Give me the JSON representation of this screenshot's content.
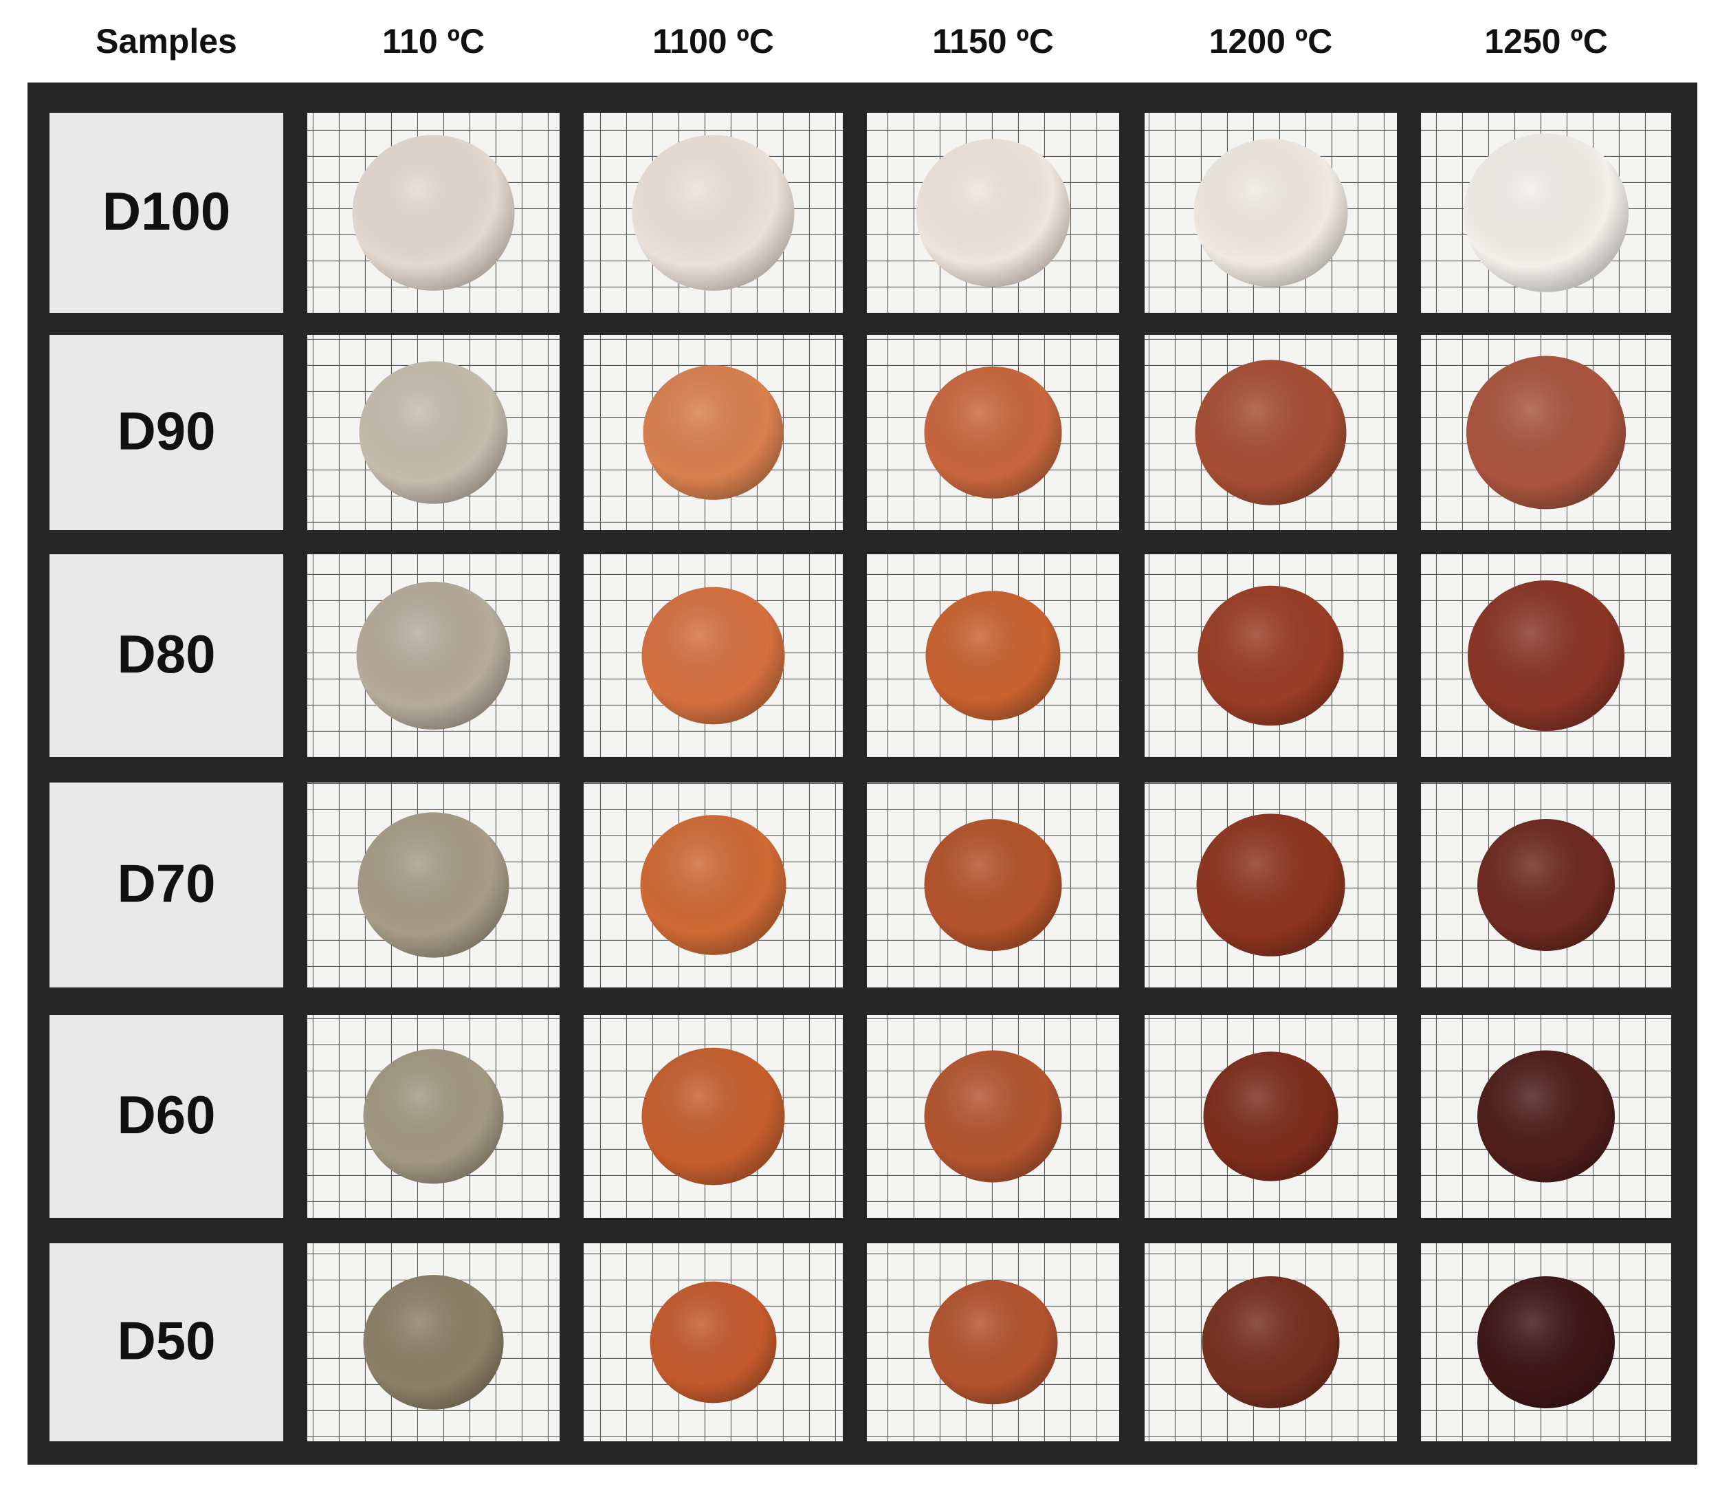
{
  "header": {
    "columns": [
      "Samples",
      "110 ºC",
      "1100 ºC",
      "1150 ºC",
      "1200 ºC",
      "1250 ºC"
    ]
  },
  "rows": [
    {
      "label": "D100"
    },
    {
      "label": "D90"
    },
    {
      "label": "D80"
    },
    {
      "label": "D70"
    },
    {
      "label": "D60"
    },
    {
      "label": "D50"
    }
  ]
}
